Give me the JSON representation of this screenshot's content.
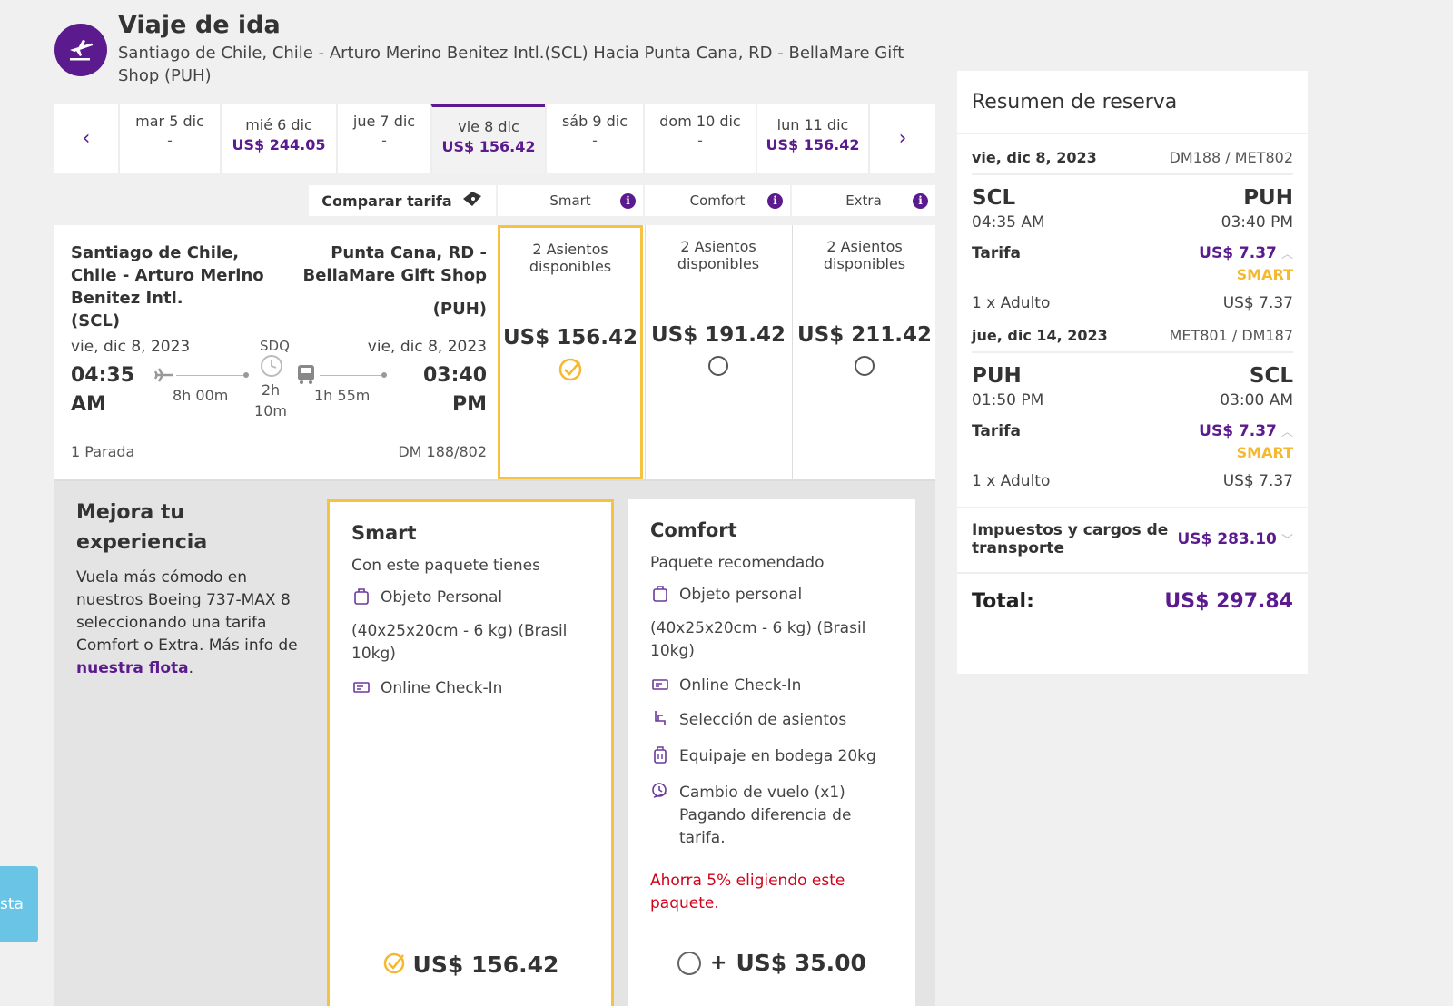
{
  "header": {
    "title": "Viaje de ida",
    "route": "Santiago de Chile, Chile - Arturo Merino Benitez Intl.(SCL) Hacia Punta Cana, RD - BellaMare Gift Shop (PUH)"
  },
  "date_strip": {
    "dates": [
      {
        "day": "mar 5 dic",
        "price": "-",
        "has_price": false
      },
      {
        "day": "mié 6 dic",
        "price": "US$ 244.05",
        "has_price": true
      },
      {
        "day": "jue 7 dic",
        "price": "-",
        "has_price": false
      },
      {
        "day": "vie 8 dic",
        "price": "US$ 156.42",
        "has_price": true,
        "selected": true
      },
      {
        "day": "sáb 9 dic",
        "price": "-",
        "has_price": false
      },
      {
        "day": "dom 10 dic",
        "price": "-",
        "has_price": false
      },
      {
        "day": "lun 11 dic",
        "price": "US$ 156.42",
        "has_price": true
      }
    ]
  },
  "compare": {
    "label": "Comparar tarifa",
    "fares": [
      "Smart",
      "Comfort",
      "Extra"
    ]
  },
  "flight": {
    "origin": "Santiago de Chile, Chile - Arturo Merino Benitez Intl.",
    "origin_code": "(SCL)",
    "destination": "Punta Cana, RD - BellaMare Gift Shop",
    "destination_code": "(PUH)",
    "dep_date": "vie, dic 8, 2023",
    "arr_date": "vie, dic 8, 2023",
    "dep_time_1": "04:35",
    "dep_time_2": "AM",
    "arr_time_1": "03:40",
    "arr_time_2": "PM",
    "stop_code": "SDQ",
    "leg1_duration": "8h 00m",
    "layover_1": "2h",
    "layover_2": "10m",
    "leg2_duration": "1h 55m",
    "stops": "1 Parada",
    "flight_numbers": "DM 188/802"
  },
  "fare_options": [
    {
      "seats": "2 Asientos disponibles",
      "price": "US$ 156.42",
      "selected": true
    },
    {
      "seats": "2 Asientos disponibles",
      "price": "US$ 191.42",
      "selected": false
    },
    {
      "seats": "2 Asientos disponibles",
      "price": "US$ 211.42",
      "selected": false
    }
  ],
  "upgrade": {
    "title": "Mejora tu experiencia",
    "text": "Vuela más cómodo en nuestros Boeing 737-MAX 8 seleccionando una tarifa Comfort o Extra. Más info de",
    "link": "nuestra flota",
    "after_link": "."
  },
  "packages": {
    "smart": {
      "title": "Smart",
      "subtitle": "Con este paquete tienes",
      "item_1": "Objeto Personal",
      "dims": "(40x25x20cm - 6 kg) (Brasil 10kg)",
      "item_2": "Online Check-In",
      "price": "US$ 156.42"
    },
    "comfort": {
      "title": "Comfort",
      "subtitle": "Paquete recomendado",
      "item_1": "Objeto personal",
      "dims": "(40x25x20cm - 6 kg) (Brasil 10kg)",
      "item_2": "Online Check-In",
      "item_3": "Selección de asientos",
      "item_4": "Equipaje en bodega 20kg",
      "item_5": "Cambio de vuelo (x1) Pagando diferencia de tarifa.",
      "savings": "Ahorra 5% eligiendo este paquete.",
      "plus": "+",
      "price": "US$ 35.00"
    }
  },
  "summary": {
    "title": "Resumen de reserva",
    "outbound": {
      "date": "vie, dic 8, 2023",
      "codes": "DM188 / MET802",
      "from": "SCL",
      "to": "PUH",
      "dep": "04:35 AM",
      "arr": "03:40 PM",
      "tarifa_label": "Tarifa",
      "tarifa_value": "US$ 7.37",
      "fare_tag": "SMART",
      "pax": "1 x Adulto",
      "pax_value": "US$ 7.37"
    },
    "return": {
      "date": "jue, dic 14, 2023",
      "codes": "MET801 / DM187",
      "from": "PUH",
      "to": "SCL",
      "dep": "01:50 PM",
      "arr": "03:00 AM",
      "tarifa_label": "Tarifa",
      "tarifa_value": "US$ 7.37",
      "fare_tag": "SMART",
      "pax": "1 x Adulto",
      "pax_value": "US$ 7.37"
    },
    "taxes_label": "Impuestos y cargos de transporte",
    "taxes_value": "US$ 283.10",
    "total_label": "Total:",
    "total_value": "US$ 297.84"
  },
  "side_tab": {
    "label": "sta"
  },
  "colors": {
    "brand": "#5b1a8e",
    "highlight": "#f5b82e",
    "savings": "#d0021b",
    "side_tab": "#6ac4e6"
  }
}
